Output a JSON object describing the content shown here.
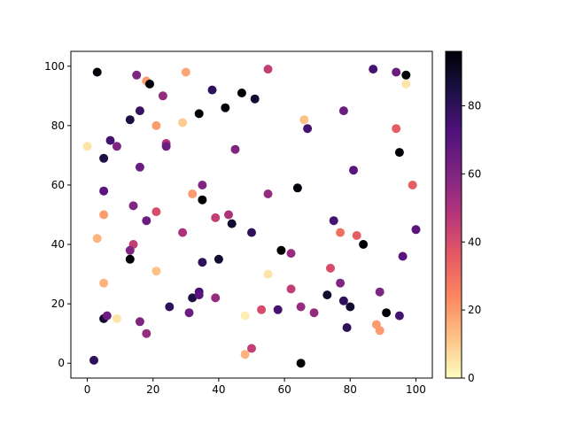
{
  "chart_data": {
    "type": "scatter",
    "title": "",
    "xlabel": "",
    "ylabel": "",
    "xlim": [
      -5,
      105
    ],
    "ylim": [
      -5,
      105
    ],
    "xticks": [
      0,
      20,
      40,
      60,
      80,
      100
    ],
    "yticks": [
      0,
      20,
      40,
      60,
      80,
      100
    ],
    "grid": false,
    "colormap": "magma_r",
    "colorbar": {
      "range": [
        0,
        96
      ],
      "ticks": [
        0,
        20,
        40,
        60,
        80
      ]
    },
    "colormap_stops": [
      "#fcfdbf",
      "#fec287",
      "#fb8761",
      "#e55964",
      "#b5367a",
      "#7f2582",
      "#51127c",
      "#1d1147",
      "#000004"
    ],
    "points": [
      {
        "x": 3,
        "y": 98,
        "c": 95
      },
      {
        "x": 15,
        "y": 97,
        "c": 60
      },
      {
        "x": 18,
        "y": 95,
        "c": 20
      },
      {
        "x": 19,
        "y": 94,
        "c": 95
      },
      {
        "x": 30,
        "y": 98,
        "c": 18
      },
      {
        "x": 55,
        "y": 99,
        "c": 45
      },
      {
        "x": 87,
        "y": 99,
        "c": 75
      },
      {
        "x": 94,
        "y": 98,
        "c": 65
      },
      {
        "x": 97,
        "y": 97,
        "c": 96
      },
      {
        "x": 97,
        "y": 94,
        "c": 5
      },
      {
        "x": 23,
        "y": 90,
        "c": 55
      },
      {
        "x": 38,
        "y": 92,
        "c": 80
      },
      {
        "x": 47,
        "y": 91,
        "c": 96
      },
      {
        "x": 51,
        "y": 89,
        "c": 88
      },
      {
        "x": 16,
        "y": 85,
        "c": 78
      },
      {
        "x": 42,
        "y": 86,
        "c": 95
      },
      {
        "x": 34,
        "y": 84,
        "c": 96
      },
      {
        "x": 13,
        "y": 82,
        "c": 85
      },
      {
        "x": 21,
        "y": 80,
        "c": 20
      },
      {
        "x": 29,
        "y": 81,
        "c": 10
      },
      {
        "x": 66,
        "y": 82,
        "c": 12
      },
      {
        "x": 78,
        "y": 85,
        "c": 65
      },
      {
        "x": 67,
        "y": 79,
        "c": 75
      },
      {
        "x": 94,
        "y": 79,
        "c": 35
      },
      {
        "x": 7,
        "y": 75,
        "c": 75
      },
      {
        "x": 0,
        "y": 73,
        "c": 5
      },
      {
        "x": 9,
        "y": 73,
        "c": 60
      },
      {
        "x": 24,
        "y": 74,
        "c": 50
      },
      {
        "x": 24,
        "y": 73,
        "c": 65
      },
      {
        "x": 45,
        "y": 72,
        "c": 60
      },
      {
        "x": 95,
        "y": 71,
        "c": 96
      },
      {
        "x": 5,
        "y": 69,
        "c": 85
      },
      {
        "x": 16,
        "y": 66,
        "c": 65
      },
      {
        "x": 81,
        "y": 65,
        "c": 70
      },
      {
        "x": 35,
        "y": 60,
        "c": 60
      },
      {
        "x": 64,
        "y": 59,
        "c": 95
      },
      {
        "x": 99,
        "y": 60,
        "c": 35
      },
      {
        "x": 5,
        "y": 58,
        "c": 70
      },
      {
        "x": 32,
        "y": 57,
        "c": 20
      },
      {
        "x": 55,
        "y": 57,
        "c": 55
      },
      {
        "x": 35,
        "y": 55,
        "c": 96
      },
      {
        "x": 14,
        "y": 53,
        "c": 60
      },
      {
        "x": 5,
        "y": 50,
        "c": 20
      },
      {
        "x": 21,
        "y": 51,
        "c": 40
      },
      {
        "x": 39,
        "y": 49,
        "c": 45
      },
      {
        "x": 43,
        "y": 50,
        "c": 50
      },
      {
        "x": 18,
        "y": 48,
        "c": 65
      },
      {
        "x": 44,
        "y": 47,
        "c": 88
      },
      {
        "x": 75,
        "y": 48,
        "c": 75
      },
      {
        "x": 29,
        "y": 44,
        "c": 50
      },
      {
        "x": 50,
        "y": 44,
        "c": 80
      },
      {
        "x": 77,
        "y": 44,
        "c": 30
      },
      {
        "x": 82,
        "y": 43,
        "c": 35
      },
      {
        "x": 100,
        "y": 45,
        "c": 70
      },
      {
        "x": 3,
        "y": 42,
        "c": 15
      },
      {
        "x": 14,
        "y": 40,
        "c": 45
      },
      {
        "x": 13,
        "y": 38,
        "c": 60
      },
      {
        "x": 59,
        "y": 38,
        "c": 96
      },
      {
        "x": 84,
        "y": 40,
        "c": 96
      },
      {
        "x": 62,
        "y": 37,
        "c": 55
      },
      {
        "x": 13,
        "y": 35,
        "c": 96
      },
      {
        "x": 35,
        "y": 34,
        "c": 80
      },
      {
        "x": 40,
        "y": 35,
        "c": 88
      },
      {
        "x": 96,
        "y": 36,
        "c": 70
      },
      {
        "x": 21,
        "y": 31,
        "c": 12
      },
      {
        "x": 55,
        "y": 30,
        "c": 5
      },
      {
        "x": 74,
        "y": 32,
        "c": 40
      },
      {
        "x": 5,
        "y": 27,
        "c": 15
      },
      {
        "x": 62,
        "y": 25,
        "c": 45
      },
      {
        "x": 77,
        "y": 27,
        "c": 60
      },
      {
        "x": 89,
        "y": 24,
        "c": 60
      },
      {
        "x": 32,
        "y": 22,
        "c": 85
      },
      {
        "x": 34,
        "y": 24,
        "c": 75
      },
      {
        "x": 34,
        "y": 23,
        "c": 70
      },
      {
        "x": 39,
        "y": 22,
        "c": 55
      },
      {
        "x": 73,
        "y": 23,
        "c": 88
      },
      {
        "x": 78,
        "y": 21,
        "c": 80
      },
      {
        "x": 25,
        "y": 19,
        "c": 80
      },
      {
        "x": 31,
        "y": 17,
        "c": 65
      },
      {
        "x": 53,
        "y": 18,
        "c": 40
      },
      {
        "x": 58,
        "y": 18,
        "c": 75
      },
      {
        "x": 65,
        "y": 19,
        "c": 55
      },
      {
        "x": 69,
        "y": 17,
        "c": 55
      },
      {
        "x": 80,
        "y": 19,
        "c": 88
      },
      {
        "x": 91,
        "y": 17,
        "c": 96
      },
      {
        "x": 5,
        "y": 15,
        "c": 88
      },
      {
        "x": 6,
        "y": 16,
        "c": 65
      },
      {
        "x": 9,
        "y": 15,
        "c": 5
      },
      {
        "x": 16,
        "y": 14,
        "c": 60
      },
      {
        "x": 48,
        "y": 16,
        "c": 3
      },
      {
        "x": 95,
        "y": 16,
        "c": 75
      },
      {
        "x": 79,
        "y": 12,
        "c": 80
      },
      {
        "x": 88,
        "y": 13,
        "c": 20
      },
      {
        "x": 89,
        "y": 11,
        "c": 20
      },
      {
        "x": 18,
        "y": 10,
        "c": 55
      },
      {
        "x": 2,
        "y": 1,
        "c": 80
      },
      {
        "x": 48,
        "y": 3,
        "c": 15
      },
      {
        "x": 50,
        "y": 5,
        "c": 45
      },
      {
        "x": 65,
        "y": 0,
        "c": 96
      }
    ]
  }
}
